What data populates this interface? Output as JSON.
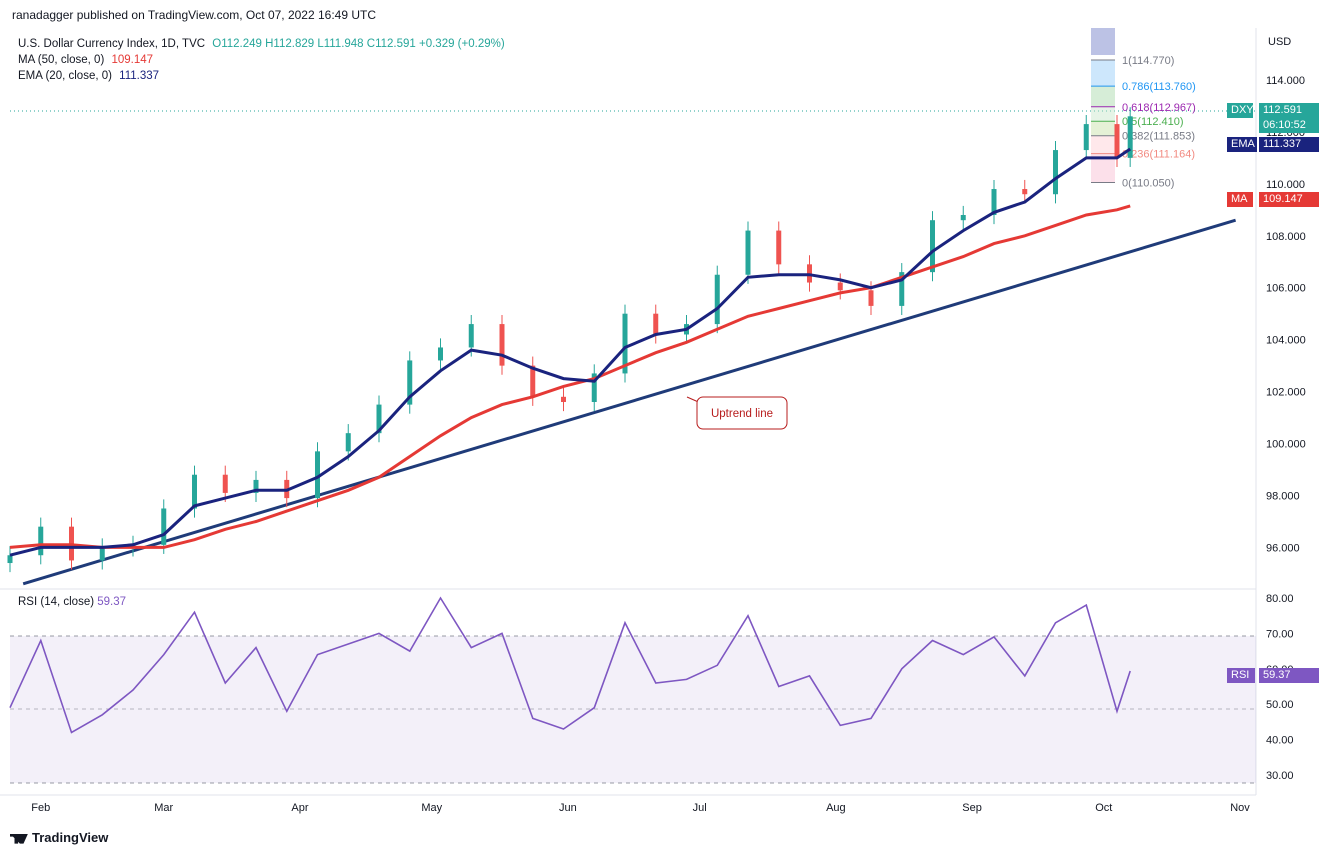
{
  "header": {
    "published": "ranadagger published on TradingView.com, Oct 07, 2022 16:49 UTC"
  },
  "legend": {
    "symbol": "U.S. Dollar Currency Index, 1D, TVC",
    "ohlc": "O112.249 H112.829 L111.948 C112.591 +0.329 (+0.29%)",
    "ma_label": "MA (50, close, 0)",
    "ma_value": "109.147",
    "ema_label": "EMA (20, close, 0)",
    "ema_value": "111.337"
  },
  "rsi_legend": {
    "label": "RSI (14, close)",
    "value": "59.37"
  },
  "axis": {
    "currency": "USD",
    "price_ticks": [
      "114.000",
      "112.000",
      "110.000",
      "108.000",
      "106.000",
      "104.000",
      "102.000",
      "100.000",
      "98.000",
      "96.000"
    ],
    "rsi_ticks": [
      "80.00",
      "70.00",
      "60.00",
      "50.00",
      "40.00",
      "30.00"
    ],
    "months": [
      "Feb",
      "Mar",
      "Apr",
      "May",
      "Jun",
      "Jul",
      "Aug",
      "Sep",
      "Oct",
      "Nov"
    ]
  },
  "badges": {
    "dxy_label": "DXY",
    "dxy_value": "112.591",
    "dxy_timer": "06:10:52",
    "ema_label": "EMA",
    "ema_value": "111.337",
    "ma_label": "MA",
    "ma_value": "109.147",
    "rsi_label": "RSI",
    "rsi_value": "59.37"
  },
  "fib": {
    "levels": [
      {
        "label": "1(114.770)",
        "value": 114.77,
        "color": "#787b86"
      },
      {
        "label": "0.786(113.760)",
        "value": 113.76,
        "color": "#2196f3"
      },
      {
        "label": "0.618(112.967)",
        "value": 112.967,
        "color": "#9c27b0"
      },
      {
        "label": "0.5(112.410)",
        "value": 112.41,
        "color": "#4caf50"
      },
      {
        "label": "0.382(111.853)",
        "value": 111.853,
        "color": "#787b86"
      },
      {
        "label": "0.236(111.164)",
        "value": 111.164,
        "color": "#f28b82"
      },
      {
        "label": "0(110.050)",
        "value": 110.05,
        "color": "#787b86"
      }
    ]
  },
  "annotation": {
    "text": "Uptrend line"
  },
  "footer": {
    "brand": "TradingView"
  },
  "chart_data": {
    "type": "line",
    "price_range": [
      94.4,
      116.0
    ],
    "rsi_range": [
      28,
      82
    ],
    "series": [
      {
        "name": "DXY",
        "color": "#26a69a",
        "x": [
          "Jan 25",
          "Feb 1",
          "Feb 8",
          "Feb 15",
          "Feb 22",
          "Mar 1",
          "Mar 8",
          "Mar 15",
          "Mar 22",
          "Mar 29",
          "Apr 5",
          "Apr 12",
          "Apr 19",
          "Apr 26",
          "May 3",
          "May 10",
          "May 17",
          "May 24",
          "May 31",
          "Jun 7",
          "Jun 14",
          "Jun 21",
          "Jun 28",
          "Jul 5",
          "Jul 12",
          "Jul 19",
          "Jul 26",
          "Aug 2",
          "Aug 9",
          "Aug 16",
          "Aug 23",
          "Aug 30",
          "Sep 6",
          "Sep 13",
          "Sep 20",
          "Sep 27",
          "Oct 4",
          "Oct 7"
        ],
        "values": [
          95.7,
          96.8,
          95.5,
          96.0,
          96.1,
          97.5,
          98.8,
          98.1,
          98.6,
          97.9,
          99.7,
          100.4,
          101.5,
          103.2,
          103.7,
          104.6,
          103.0,
          101.8,
          101.6,
          102.7,
          105.0,
          104.2,
          104.6,
          106.5,
          108.2,
          106.9,
          106.2,
          105.9,
          105.3,
          106.6,
          108.6,
          108.8,
          109.8,
          109.6,
          111.3,
          112.3,
          111.0,
          112.6
        ]
      },
      {
        "name": "EMA",
        "color": "#1a237e",
        "x": [
          "Jan 25",
          "Feb 1",
          "Feb 8",
          "Feb 15",
          "Feb 22",
          "Mar 1",
          "Mar 8",
          "Mar 15",
          "Mar 22",
          "Mar 29",
          "Apr 5",
          "Apr 12",
          "Apr 19",
          "Apr 26",
          "May 3",
          "May 10",
          "May 17",
          "May 24",
          "May 31",
          "Jun 7",
          "Jun 14",
          "Jun 21",
          "Jun 28",
          "Jul 5",
          "Jul 12",
          "Jul 19",
          "Jul 26",
          "Aug 2",
          "Aug 9",
          "Aug 16",
          "Aug 23",
          "Aug 30",
          "Sep 6",
          "Sep 13",
          "Sep 20",
          "Sep 27",
          "Oct 4",
          "Oct 7"
        ],
        "values": [
          95.7,
          96.0,
          96.0,
          96.0,
          96.1,
          96.5,
          97.6,
          97.9,
          98.2,
          98.2,
          98.7,
          99.5,
          100.5,
          101.8,
          102.8,
          103.6,
          103.4,
          102.9,
          102.5,
          102.4,
          103.7,
          104.2,
          104.4,
          105.2,
          106.4,
          106.5,
          106.5,
          106.3,
          106.0,
          106.3,
          107.4,
          108.2,
          108.9,
          109.3,
          110.2,
          111.0,
          111.0,
          111.34
        ]
      },
      {
        "name": "MA",
        "color": "#e53935",
        "x": [
          "Jan 25",
          "Feb 1",
          "Feb 8",
          "Feb 15",
          "Feb 22",
          "Mar 1",
          "Mar 8",
          "Mar 15",
          "Mar 22",
          "Mar 29",
          "Apr 5",
          "Apr 12",
          "Apr 19",
          "Apr 26",
          "May 3",
          "May 10",
          "May 17",
          "May 24",
          "May 31",
          "Jun 7",
          "Jun 14",
          "Jun 21",
          "Jun 28",
          "Jul 5",
          "Jul 12",
          "Jul 19",
          "Jul 26",
          "Aug 2",
          "Aug 9",
          "Aug 16",
          "Aug 23",
          "Aug 30",
          "Sep 6",
          "Sep 13",
          "Sep 20",
          "Sep 27",
          "Oct 4",
          "Oct 7"
        ],
        "values": [
          96.0,
          96.1,
          96.1,
          96.0,
          96.0,
          96.0,
          96.3,
          96.7,
          97.0,
          97.4,
          97.8,
          98.2,
          98.7,
          99.5,
          100.3,
          101.0,
          101.5,
          101.8,
          102.2,
          102.5,
          103.0,
          103.5,
          103.9,
          104.4,
          104.9,
          105.2,
          105.5,
          105.8,
          106.0,
          106.4,
          106.8,
          107.2,
          107.7,
          108.0,
          108.4,
          108.8,
          109.0,
          109.15
        ]
      },
      {
        "name": "RSI",
        "color": "#7e57c2",
        "x": [
          "Jan 25",
          "Feb 1",
          "Feb 8",
          "Feb 15",
          "Feb 22",
          "Mar 1",
          "Mar 8",
          "Mar 15",
          "Mar 22",
          "Mar 29",
          "Apr 5",
          "Apr 12",
          "Apr 19",
          "Apr 26",
          "May 3",
          "May 10",
          "May 17",
          "May 24",
          "May 31",
          "Jun 7",
          "Jun 14",
          "Jun 21",
          "Jun 28",
          "Jul 5",
          "Jul 12",
          "Jul 19",
          "Jul 26",
          "Aug 2",
          "Aug 9",
          "Aug 16",
          "Aug 23",
          "Aug 30",
          "Sep 6",
          "Sep 13",
          "Sep 20",
          "Sep 27",
          "Oct 4",
          "Oct 7"
        ],
        "values": [
          49,
          68,
          42,
          47,
          54,
          64,
          76,
          56,
          66,
          48,
          64,
          67,
          70,
          65,
          80,
          66,
          70,
          46,
          43,
          49,
          73,
          56,
          57,
          61,
          75,
          55,
          58,
          44,
          46,
          60,
          68,
          64,
          69,
          58,
          73,
          78,
          48,
          59.37
        ]
      }
    ],
    "trendline": {
      "name": "Uptrend line",
      "from": {
        "x": "Jan 28",
        "y": 94.6
      },
      "to": {
        "x": "Oct 31",
        "y": 108.6
      }
    }
  }
}
